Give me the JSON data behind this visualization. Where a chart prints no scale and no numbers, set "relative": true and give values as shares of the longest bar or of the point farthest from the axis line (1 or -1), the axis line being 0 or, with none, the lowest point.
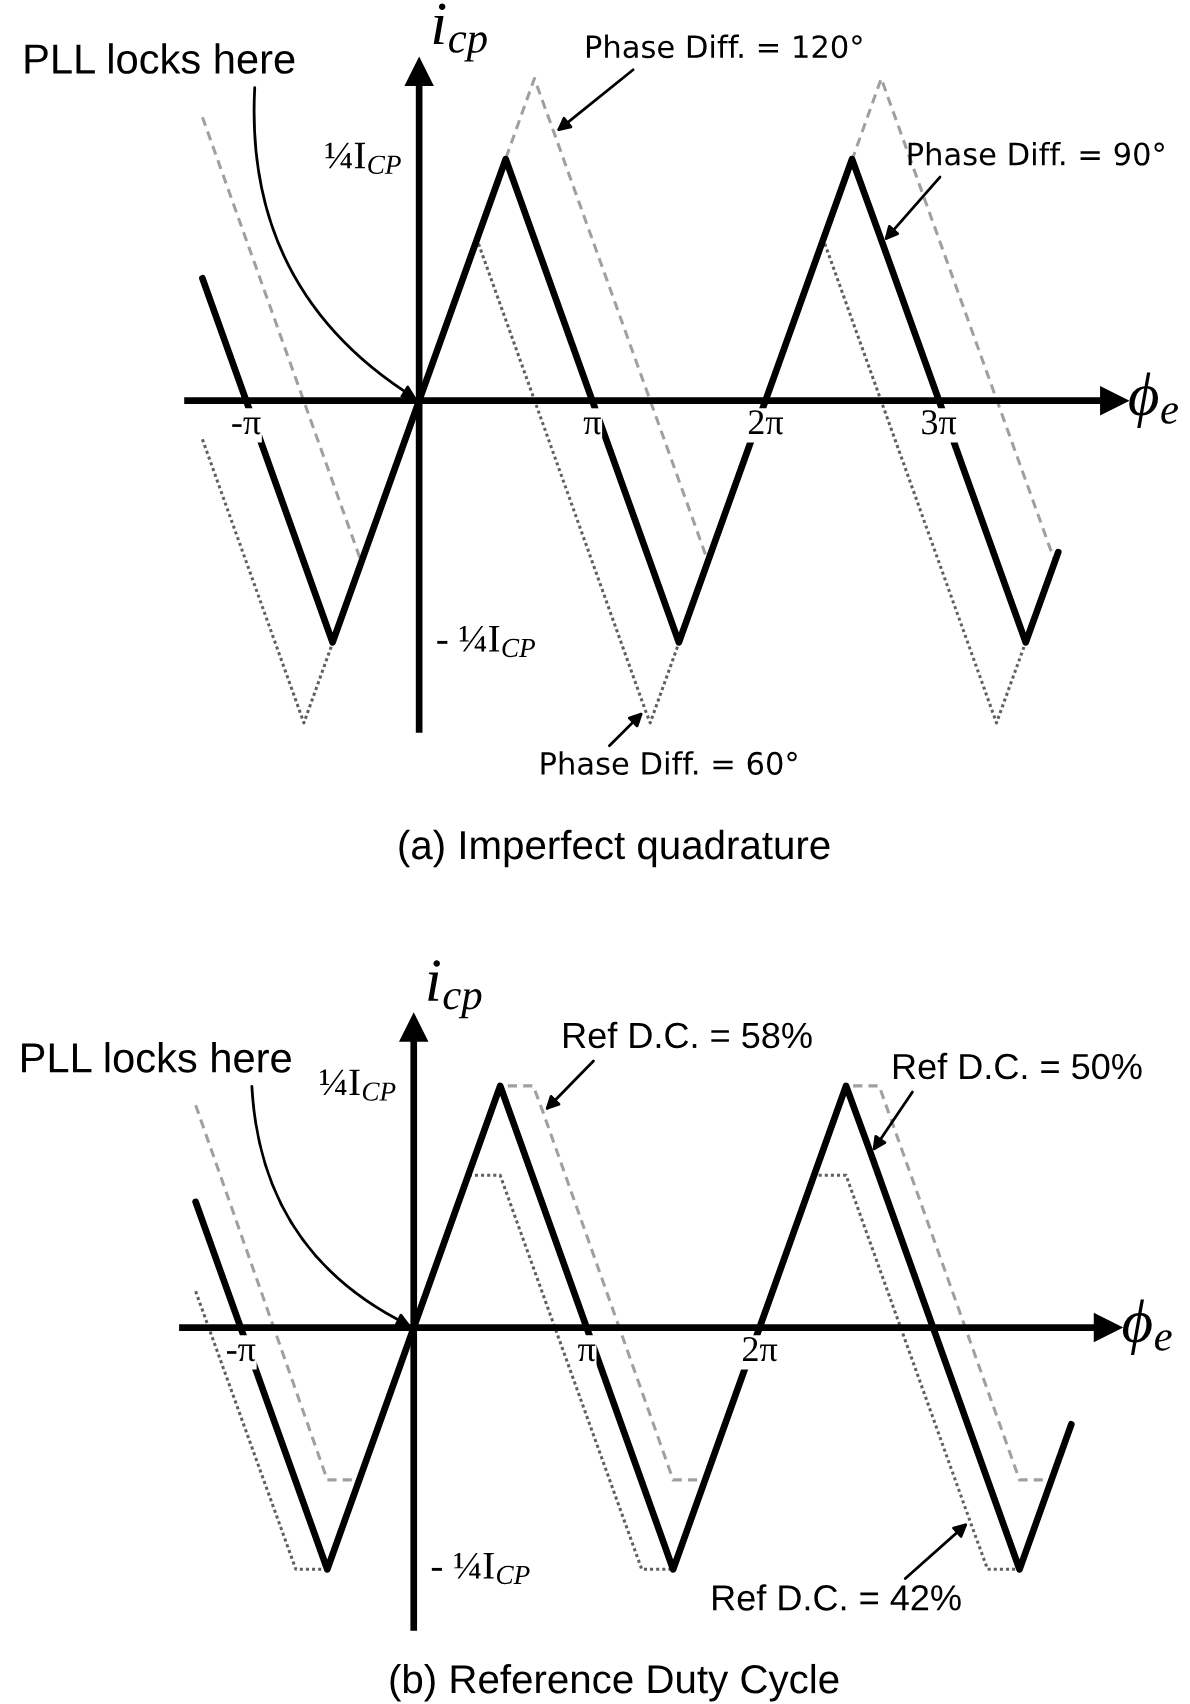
{
  "chart_data": [
    {
      "type": "line",
      "relative": true,
      "title": "(a) Imperfect quadrature",
      "xlabel": "ϕ$_{e}$",
      "ylabel": "i$_{cp}$",
      "xlim": [
        -4.2,
        12.6
      ],
      "xticks": [
        {
          "value": -3.14,
          "label": "-π"
        },
        {
          "value": 3.14,
          "label": "π"
        },
        {
          "value": 6.28,
          "label": "2π"
        },
        {
          "value": 9.42,
          "label": "3π"
        }
      ],
      "series": [
        {
          "color": "#a0a0a0",
          "line_style": "dashed",
          "x": [
            -3.93,
            -1.05,
            2.09,
            2.45,
            5.24,
            8.38,
            11.53
          ],
          "values": [
            0.88,
            -0.5,
            1,
            0.83,
            -0.5,
            1,
            -0.5
          ]
        },
        {
          "color": "#606060",
          "line_style": "dotted",
          "x": [
            -3.93,
            -2.09,
            1.05,
            4.1,
            4.19,
            7.33,
            10.47,
            11.59
          ],
          "values": [
            -0.12,
            -1,
            0.5,
            -0.96,
            -1,
            0.5,
            -1,
            -0.47
          ]
        },
        {
          "color": "#000000",
          "line_style": "solid",
          "x": [
            -3.93,
            -1.57,
            0,
            1.57,
            4.71,
            7.85,
            8.4,
            11.0,
            11.59
          ],
          "values": [
            0.38,
            -0.75,
            0,
            0.75,
            -0.75,
            0.75,
            0.49,
            -0.75,
            -0.47
          ]
        }
      ],
      "annotations": [
        {
          "text": "PLL locks here",
          "x": 0,
          "y": 0
        },
        {
          "text": "Phase Diff. = 120°",
          "x": 2.45,
          "y": 0.83
        },
        {
          "text": "Phase Diff. = 90°",
          "x": 8.4,
          "y": 0.49
        },
        {
          "text": "Phase Diff. = 60°",
          "x": 4.1,
          "y": -0.96
        },
        "¼I$_{CP}$",
        "- ¼I$_{CP}$"
      ]
    },
    {
      "type": "line",
      "relative": true,
      "title": "(b) Reference Duty Cycle",
      "xlabel": "ϕ$_{e}$",
      "ylabel": "i$_{cp}$",
      "xlim": [
        -4.2,
        12.6
      ],
      "xticks": [
        {
          "value": -3.14,
          "label": "-π"
        },
        {
          "value": 3.14,
          "label": "π"
        },
        {
          "value": 6.28,
          "label": "2π"
        }
      ],
      "series": [
        {
          "color": "#a0a0a0",
          "line_style": "dashed",
          "x": [
            -3.96,
            -1.57,
            -0.98,
            1.57,
            2.17,
            2.35,
            4.71,
            5.3,
            7.85,
            8.45,
            11.0,
            11.47
          ],
          "values": [
            0.92,
            -0.63,
            -0.63,
            1,
            1,
            0.89,
            -0.63,
            -0.63,
            1,
            1,
            -0.63,
            -0.63
          ]
        },
        {
          "color": "#606060",
          "line_style": "dotted",
          "x": [
            -3.96,
            -2.14,
            -1.57,
            1.0,
            1.57,
            4.14,
            4.71,
            7.27,
            7.85,
            10.1,
            10.42,
            11.0,
            11.94
          ],
          "values": [
            0.15,
            -1,
            -1,
            0.63,
            0.63,
            -1,
            -1,
            0.63,
            0.63,
            -0.8,
            -1,
            -1,
            -0.4
          ]
        },
        {
          "color": "#000000",
          "line_style": "solid",
          "x": [
            -3.96,
            -1.57,
            0,
            1.57,
            4.71,
            7.85,
            8.3,
            11.0,
            11.94
          ],
          "values": [
            0.52,
            -1,
            0,
            1,
            -1,
            1,
            0.72,
            -1,
            -0.4
          ]
        }
      ],
      "annotations": [
        {
          "text": "PLL locks here",
          "x": 0,
          "y": 0
        },
        {
          "text": "Ref D.C. = 58%",
          "x": 2.35,
          "y": 0.89
        },
        {
          "text": "Ref D.C. = 50%",
          "x": 8.3,
          "y": 0.72
        },
        {
          "text": "Ref D.C. = 42%",
          "x": 10.1,
          "y": -0.8
        },
        "¼I$_{CP}$",
        "- ¼I$_{CP}$"
      ]
    }
  ]
}
